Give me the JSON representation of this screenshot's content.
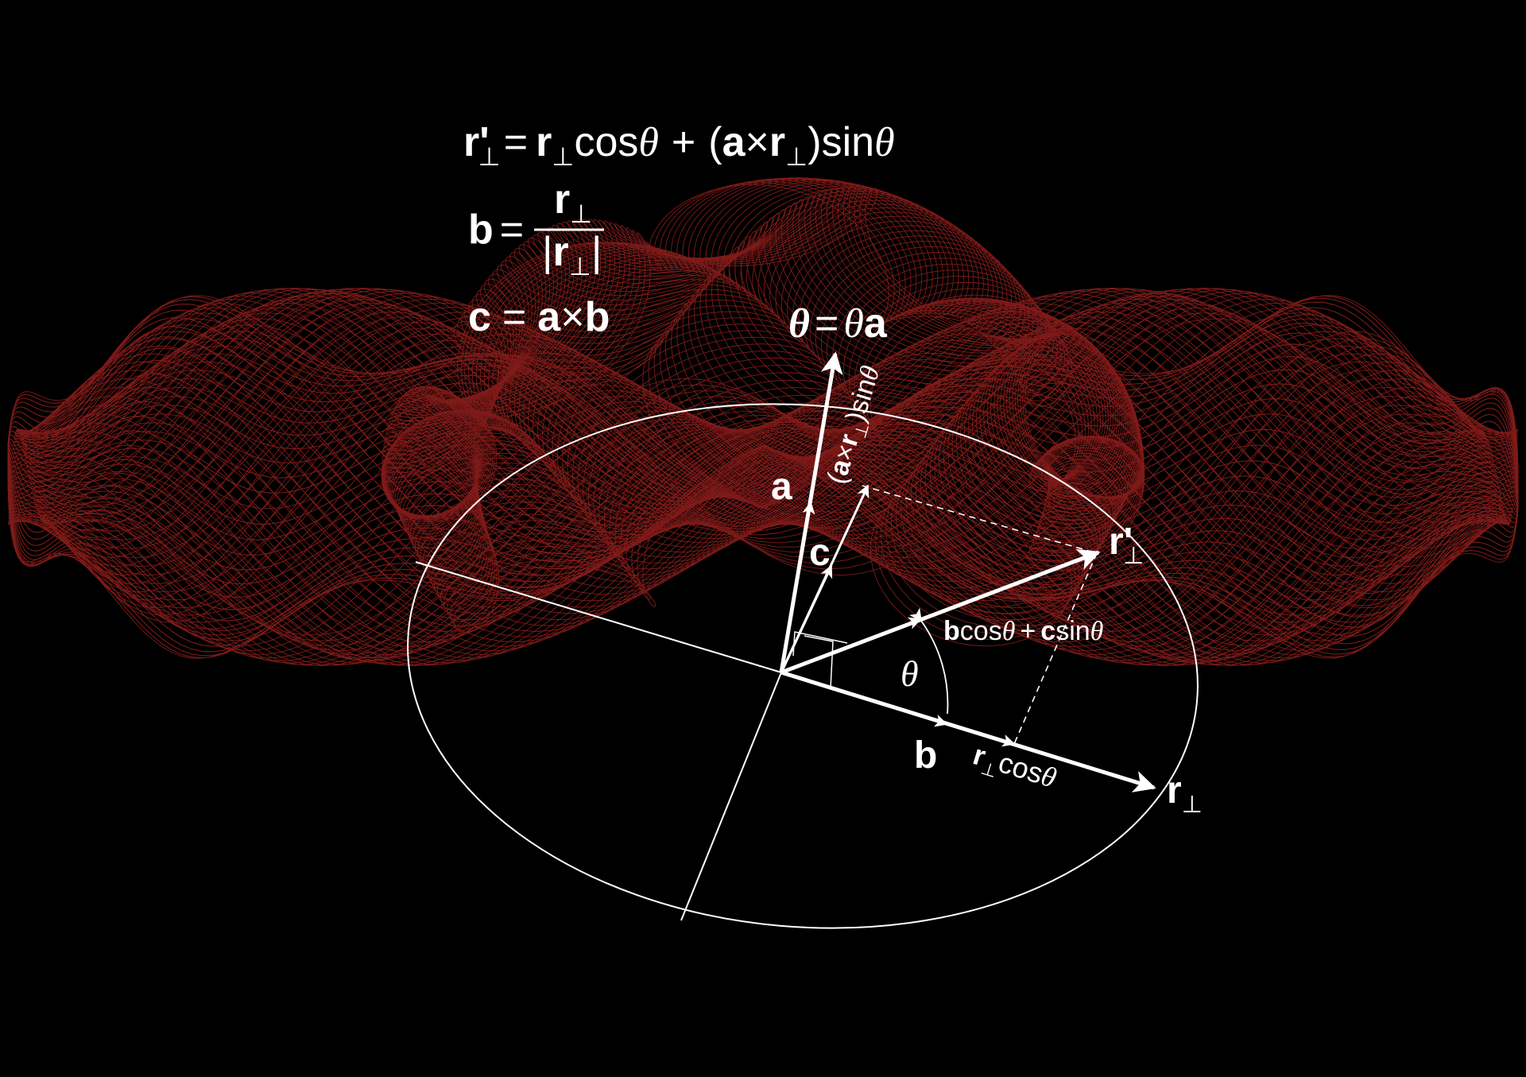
{
  "colors": {
    "background": "#000000",
    "curve": "#e8322e",
    "ink": "#ffffff"
  },
  "formulas": {
    "line1": {
      "r": "r",
      "prime": "'",
      "perp": "⊥",
      "eq": "=",
      "cos": "cos",
      "theta": "θ",
      "plus": "+",
      "open": "(",
      "a": "a",
      "times": "×",
      "close": ")",
      "sin": "sin"
    },
    "line2": {
      "b": "b",
      "eq": "=",
      "num": "r",
      "perp": "⊥",
      "bar": "|",
      "den": "r"
    },
    "line3": {
      "text_c": "c",
      "eq": "=",
      "a": "a",
      "times": "×",
      "b": "b"
    }
  },
  "labels": {
    "theta_vec": {
      "theta_bold": "θ",
      "eq": "=",
      "theta": "θ",
      "a": "a"
    },
    "a": "a",
    "c": "c",
    "b": "b",
    "r_perp": {
      "r": "r",
      "perp": "⊥"
    },
    "r_perp_prime": {
      "r": "r",
      "prime": "'",
      "perp": "⊥"
    },
    "angle": "θ",
    "combo": {
      "b": "b",
      "cos": "cos",
      "theta": "θ",
      "plus": "+",
      "c": "c",
      "sin": "sin"
    },
    "proj_cos": {
      "r": "r",
      "perp": "⊥",
      "cos": "cos",
      "theta": "θ"
    },
    "proj_sin": {
      "open": "(",
      "a": "a",
      "times": "×",
      "r": "r",
      "perp": "⊥",
      "close": ")",
      "sin": "sin",
      "theta": "θ"
    }
  }
}
